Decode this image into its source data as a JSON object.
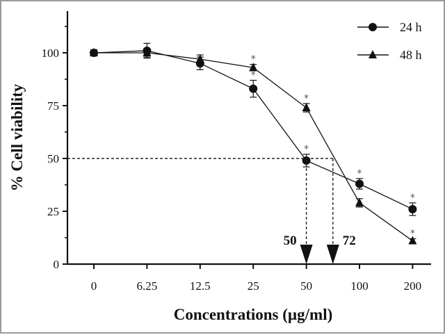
{
  "chart_data": {
    "type": "line",
    "xlabel": "Concentrations (µg/ml)",
    "ylabel": "% Cell viability",
    "categories": [
      "0",
      "6.25",
      "12.5",
      "25",
      "50",
      "100",
      "200"
    ],
    "yticks": [
      0,
      25,
      50,
      75,
      100
    ],
    "ylim": [
      0,
      120
    ],
    "legend_position": "top-right",
    "series": [
      {
        "name": "24 h",
        "marker": "circle",
        "values": [
          100,
          101,
          95,
          83,
          49,
          38,
          26
        ],
        "errors": [
          1.5,
          3.5,
          3.0,
          4.0,
          3.0,
          2.5,
          3.0
        ],
        "significant": [
          false,
          false,
          false,
          true,
          true,
          true,
          true
        ]
      },
      {
        "name": "48 h",
        "marker": "triangle",
        "values": [
          100,
          100,
          97,
          93,
          74,
          29,
          11
        ],
        "errors": [
          1,
          2,
          2,
          1.5,
          2,
          2,
          1
        ],
        "significant": [
          false,
          false,
          false,
          true,
          true,
          false,
          true
        ]
      }
    ],
    "reference_line": {
      "y": 50
    },
    "annotations": [
      {
        "text": "50",
        "x_category_index": 4,
        "x_offset": 0
      },
      {
        "text": "72",
        "x_category_index": 4,
        "x_offset": 0.5
      }
    ],
    "significance_marker": "*"
  }
}
